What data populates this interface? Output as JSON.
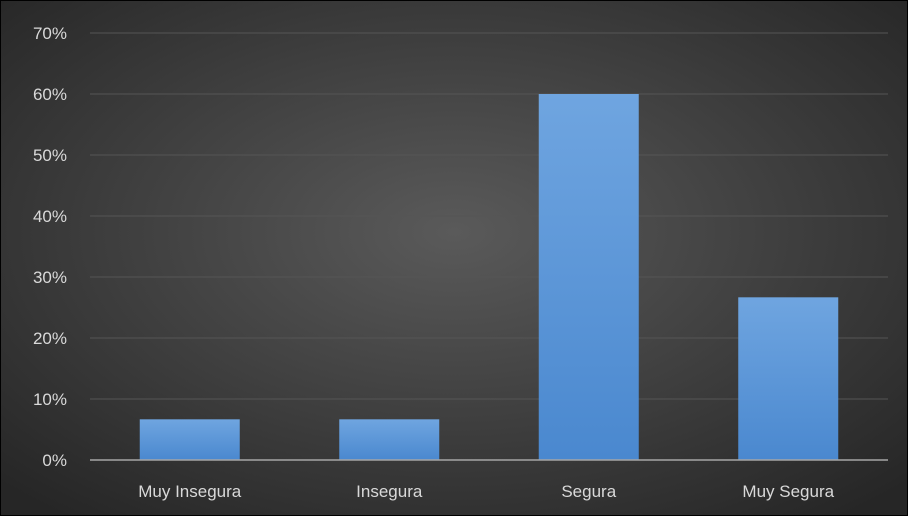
{
  "chart_data": {
    "type": "bar",
    "categories": [
      "Muy Insegura",
      "Insegura",
      "Segura",
      "Muy Segura"
    ],
    "values": [
      6.67,
      6.67,
      60.0,
      26.67
    ],
    "ylim": [
      0,
      70
    ],
    "yticks": [
      0,
      10,
      20,
      30,
      40,
      50,
      60,
      70
    ],
    "ytick_labels": [
      "0%",
      "10%",
      "20%",
      "30%",
      "40%",
      "50%",
      "60%",
      "70%"
    ],
    "grid": true,
    "legend": "none",
    "colors": {
      "background_center": "#5a5a5a",
      "background_edge": "#262626",
      "bar_top": "#6fa5e0",
      "bar_bottom": "#4a88cf",
      "grid": "#555555",
      "axis": "#a6a6a6",
      "text": "#d9d9d9",
      "border": "#000000"
    }
  }
}
